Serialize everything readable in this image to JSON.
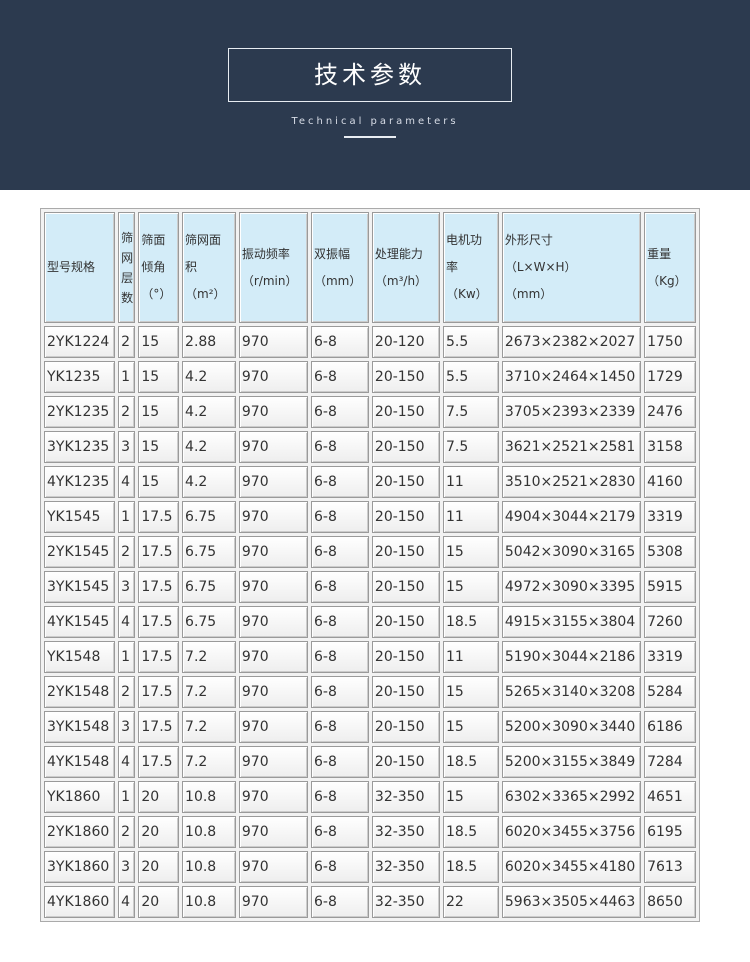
{
  "header": {
    "title": "技术参数",
    "subtitle": "Technical parameters"
  },
  "table": {
    "columns": [
      [
        "型号规格"
      ],
      [
        "筛",
        "网",
        "层",
        "数"
      ],
      [
        "筛面",
        "倾角",
        "（°）"
      ],
      [
        "筛网面",
        "积",
        "（m²）"
      ],
      [
        "振动频率",
        "（r/min）"
      ],
      [
        "双振幅",
        "（mm）"
      ],
      [
        "处理能力",
        "（m³/h）"
      ],
      [
        "电机功",
        "率",
        "（Kw）"
      ],
      [
        "外形尺寸",
        "（L×W×H）",
        "（mm）"
      ],
      [
        "重量",
        "（Kg）"
      ]
    ],
    "rows": [
      [
        "2YK1224",
        "2",
        "15",
        "2.88",
        "970",
        "6-8",
        "20-120",
        "5.5",
        "2673×2382×2027",
        "1750"
      ],
      [
        "YK1235",
        "1",
        "15",
        "4.2",
        "970",
        "6-8",
        "20-150",
        "5.5",
        "3710×2464×1450",
        "1729"
      ],
      [
        "2YK1235",
        "2",
        "15",
        "4.2",
        "970",
        "6-8",
        "20-150",
        "7.5",
        "3705×2393×2339",
        "2476"
      ],
      [
        "3YK1235",
        "3",
        "15",
        "4.2",
        "970",
        "6-8",
        "20-150",
        "7.5",
        "3621×2521×2581",
        "3158"
      ],
      [
        "4YK1235",
        "4",
        "15",
        "4.2",
        "970",
        "6-8",
        "20-150",
        "11",
        "3510×2521×2830",
        "4160"
      ],
      [
        "YK1545",
        "1",
        "17.5",
        "6.75",
        "970",
        "6-8",
        "20-150",
        "11",
        "4904×3044×2179",
        "3319"
      ],
      [
        "2YK1545",
        "2",
        "17.5",
        "6.75",
        "970",
        "6-8",
        "20-150",
        "15",
        "5042×3090×3165",
        "5308"
      ],
      [
        "3YK1545",
        "3",
        "17.5",
        "6.75",
        "970",
        "6-8",
        "20-150",
        "15",
        "4972×3090×3395",
        "5915"
      ],
      [
        "4YK1545",
        "4",
        "17.5",
        "6.75",
        "970",
        "6-8",
        "20-150",
        "18.5",
        "4915×3155×3804",
        "7260"
      ],
      [
        "YK1548",
        "1",
        "17.5",
        "7.2",
        "970",
        "6-8",
        "20-150",
        "11",
        "5190×3044×2186",
        "3319"
      ],
      [
        "2YK1548",
        "2",
        "17.5",
        "7.2",
        "970",
        "6-8",
        "20-150",
        "15",
        "5265×3140×3208",
        "5284"
      ],
      [
        "3YK1548",
        "3",
        "17.5",
        "7.2",
        "970",
        "6-8",
        "20-150",
        "15",
        "5200×3090×3440",
        "6186"
      ],
      [
        "4YK1548",
        "4",
        "17.5",
        "7.2",
        "970",
        "6-8",
        "20-150",
        "18.5",
        "5200×3155×3849",
        "7284"
      ],
      [
        "YK1860",
        "1",
        "20",
        "10.8",
        "970",
        "6-8",
        "32-350",
        "15",
        "6302×3365×2992",
        "4651"
      ],
      [
        "2YK1860",
        "2",
        "20",
        "10.8",
        "970",
        "6-8",
        "32-350",
        "18.5",
        "6020×3455×3756",
        "6195"
      ],
      [
        "3YK1860",
        "3",
        "20",
        "10.8",
        "970",
        "6-8",
        "32-350",
        "18.5",
        "6020×3455×4180",
        "7613"
      ],
      [
        "4YK1860",
        "4",
        "20",
        "10.8",
        "970",
        "6-8",
        "32-350",
        "22",
        "5963×3505×4463",
        "8650"
      ]
    ]
  }
}
